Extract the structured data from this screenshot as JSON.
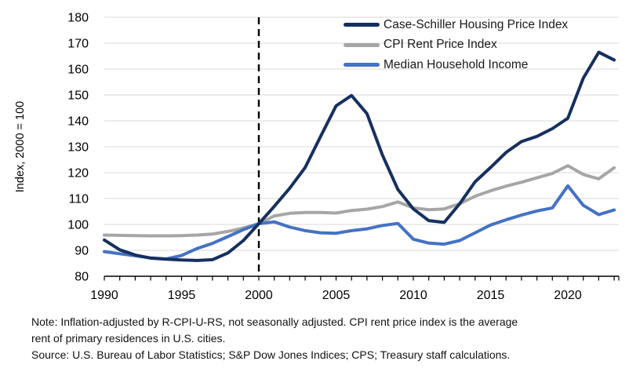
{
  "chart_data": {
    "type": "line",
    "title": "",
    "ylabel": "Index, 2000 = 100",
    "ylim": [
      80,
      180
    ],
    "y_ticks": [
      80,
      90,
      100,
      110,
      120,
      130,
      140,
      150,
      160,
      170,
      180
    ],
    "x_range": [
      1990,
      2023
    ],
    "x_labeled_ticks": [
      1990,
      1995,
      2000,
      2005,
      2010,
      2015,
      2020
    ],
    "grid": "horizontal",
    "legend_position": "top-right-inside",
    "reference_line": {
      "x": 2000,
      "style": "dashed",
      "color": "#000000"
    },
    "years": [
      1990,
      1991,
      1992,
      1993,
      1994,
      1995,
      1996,
      1997,
      1998,
      1999,
      2000,
      2001,
      2002,
      2003,
      2004,
      2005,
      2006,
      2007,
      2008,
      2009,
      2010,
      2011,
      2012,
      2013,
      2014,
      2015,
      2016,
      2017,
      2018,
      2019,
      2020,
      2021,
      2022,
      2023
    ],
    "series": [
      {
        "name": "Case-Schiller Housing Price Index",
        "color": "#16305F",
        "values": [
          94.0,
          90.2,
          88.2,
          87.0,
          86.6,
          86.3,
          86.1,
          86.4,
          89.0,
          93.8,
          100.3,
          107.0,
          114.0,
          122.0,
          134.0,
          145.8,
          149.8,
          142.8,
          126.8,
          113.5,
          106.0,
          101.5,
          100.8,
          108.0,
          116.5,
          122.0,
          127.8,
          132.0,
          134.0,
          137.0,
          141.0,
          156.5,
          166.5,
          163.5
        ]
      },
      {
        "name": "CPI Rent Price Index",
        "color": "#A6A6A6",
        "values": [
          95.9,
          95.8,
          95.7,
          95.6,
          95.6,
          95.7,
          95.9,
          96.3,
          97.3,
          98.6,
          100.3,
          103.3,
          104.3,
          104.6,
          104.6,
          104.4,
          105.4,
          105.9,
          106.9,
          108.7,
          106.4,
          105.7,
          106.0,
          108.0,
          110.9,
          113.0,
          114.8,
          116.3,
          118.0,
          119.7,
          122.7,
          119.3,
          117.6,
          121.9
        ]
      },
      {
        "name": "Median Household Income",
        "color": "#4472C4",
        "values": [
          89.5,
          88.7,
          87.9,
          87.1,
          86.7,
          88.0,
          90.7,
          92.7,
          95.3,
          98.0,
          100.3,
          101.0,
          99.0,
          97.6,
          96.8,
          96.6,
          97.6,
          98.3,
          99.6,
          100.4,
          94.3,
          92.8,
          92.4,
          93.8,
          96.8,
          99.8,
          101.8,
          103.6,
          105.2,
          106.4,
          114.9,
          107.4,
          103.8,
          105.6
        ]
      }
    ]
  },
  "notes": {
    "note_line1": "Note: Inflation-adjusted by R-CPI-U-RS, not seasonally adjusted. CPI rent price index is the average",
    "note_line2": "rent of primary residences in U.S. cities.",
    "source": "Source: U.S. Bureau of Labor Statistics; S&P Dow Jones Indices; CPS; Treasury staff calculations."
  }
}
